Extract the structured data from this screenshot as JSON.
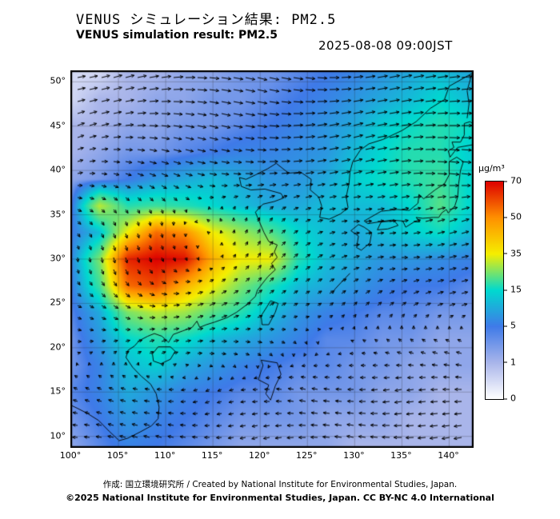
{
  "header": {
    "title_jp": "VENUS シミュレーション結果: PM2.5",
    "title_en": "VENUS simulation result: PM2.5",
    "timestamp": "2025-08-08 09:00JST"
  },
  "footer": {
    "credit_line1": "作成: 国立環境研究所 / Created by National Institute for Environmental Studies, Japan.",
    "credit_line2": "©2025 National Institute for Environmental Studies, Japan. CC BY-NC 4.0 International"
  },
  "axes": {
    "lon_labels": [
      "100°",
      "105°",
      "110°",
      "115°",
      "120°",
      "125°",
      "130°",
      "135°",
      "140°"
    ],
    "lat_labels": [
      "50°",
      "45°",
      "40°",
      "35°",
      "30°",
      "25°",
      "20°",
      "15°",
      "10°"
    ]
  },
  "colorbar": {
    "unit": "µg/m³",
    "ticks": [
      70,
      50,
      35,
      15,
      5,
      1,
      0
    ],
    "stops": [
      {
        "value": 0,
        "color": "#ffffff"
      },
      {
        "value": 1,
        "color": "#a9b5ea"
      },
      {
        "value": 5,
        "color": "#3f7ae8"
      },
      {
        "value": 15,
        "color": "#00d9cf"
      },
      {
        "value": 35,
        "color": "#f5ee00"
      },
      {
        "value": 50,
        "color": "#ff9000"
      },
      {
        "value": 70,
        "color": "#dd0000"
      }
    ]
  },
  "chart_data": {
    "type": "heatmap",
    "title": "VENUS simulation result: PM2.5",
    "unit": "µg/m³",
    "lon_range": [
      100,
      142.5
    ],
    "lat_range": [
      8.8,
      51.2
    ],
    "grid_lons": [
      100,
      103,
      106,
      109,
      112,
      115,
      118,
      121,
      124,
      127,
      130,
      133,
      136,
      139,
      142
    ],
    "grid_lats": [
      51,
      48,
      45,
      42,
      39,
      36,
      33,
      30,
      27,
      24,
      21,
      18,
      15,
      12,
      9
    ],
    "values": [
      [
        0.5,
        0.5,
        1,
        1,
        2,
        2,
        3,
        3,
        4,
        5,
        6,
        8,
        10,
        12,
        10
      ],
      [
        0.5,
        1,
        1,
        2,
        2,
        3,
        3,
        4,
        5,
        6,
        8,
        10,
        12,
        15,
        12
      ],
      [
        1,
        1,
        2,
        2,
        3,
        3,
        4,
        5,
        6,
        8,
        10,
        14,
        16,
        18,
        16
      ],
      [
        1,
        2,
        3,
        3,
        4,
        5,
        6,
        6,
        7,
        8,
        12,
        15,
        18,
        18,
        14
      ],
      [
        2,
        3,
        5,
        8,
        10,
        12,
        10,
        8,
        8,
        10,
        14,
        16,
        18,
        20,
        15
      ],
      [
        4,
        30,
        18,
        20,
        18,
        15,
        12,
        10,
        10,
        12,
        12,
        12,
        15,
        22,
        15
      ],
      [
        5,
        12,
        35,
        55,
        50,
        35,
        28,
        22,
        15,
        12,
        10,
        12,
        14,
        16,
        12
      ],
      [
        6,
        25,
        65,
        70,
        68,
        45,
        35,
        35,
        18,
        12,
        10,
        8,
        8,
        7,
        6
      ],
      [
        5,
        20,
        55,
        60,
        45,
        35,
        25,
        18,
        12,
        10,
        8,
        6,
        5,
        5,
        4
      ],
      [
        4,
        10,
        25,
        30,
        28,
        22,
        18,
        12,
        8,
        6,
        5,
        4,
        4,
        3,
        3
      ],
      [
        3,
        8,
        15,
        18,
        16,
        12,
        10,
        8,
        6,
        4,
        4,
        3,
        3,
        2,
        2
      ],
      [
        3,
        6,
        12,
        14,
        10,
        8,
        6,
        5,
        4,
        4,
        3,
        3,
        2,
        2,
        2
      ],
      [
        4,
        6,
        10,
        8,
        6,
        5,
        4,
        4,
        3,
        3,
        3,
        2,
        2,
        1,
        1
      ],
      [
        3,
        5,
        8,
        6,
        5,
        4,
        3,
        3,
        3,
        2,
        2,
        2,
        1,
        1,
        1
      ],
      [
        2,
        4,
        6,
        5,
        4,
        3,
        2,
        2,
        2,
        2,
        1,
        1,
        1,
        1,
        1
      ]
    ],
    "wind": {
      "lons": [
        100,
        105,
        110,
        115,
        120,
        125,
        130,
        135,
        140
      ],
      "lats": [
        50,
        45,
        40,
        35,
        30,
        25,
        20,
        15,
        10
      ],
      "u": [
        [
          6,
          7,
          8,
          8,
          8,
          8,
          8,
          9,
          9
        ],
        [
          5,
          6,
          7,
          7,
          8,
          8,
          8,
          8,
          9
        ],
        [
          3,
          4,
          5,
          6,
          6,
          7,
          7,
          8,
          8
        ],
        [
          2,
          1,
          0,
          -1,
          1,
          3,
          4,
          5,
          6
        ],
        [
          0,
          1,
          1,
          0,
          2,
          3,
          4,
          4,
          5
        ],
        [
          2,
          3,
          4,
          4,
          3,
          2,
          2,
          3,
          4
        ],
        [
          1,
          2,
          3,
          3,
          2,
          0,
          -1,
          -2,
          -3
        ],
        [
          -2,
          -3,
          -3,
          -2,
          -3,
          -4,
          -4,
          -5,
          -5
        ],
        [
          -3,
          -4,
          -4,
          -3,
          -4,
          -5,
          -5,
          -6,
          -6
        ]
      ],
      "v": [
        [
          1,
          2,
          1,
          -1,
          -2,
          -1,
          1,
          2,
          1
        ],
        [
          2,
          1,
          -1,
          -2,
          -1,
          1,
          2,
          1,
          0
        ],
        [
          1,
          -1,
          -2,
          -1,
          0,
          1,
          2,
          1,
          -1
        ],
        [
          -1,
          -2,
          -2,
          1,
          2,
          1,
          0,
          1,
          2
        ],
        [
          -2,
          -4,
          -2,
          0,
          3,
          2,
          1,
          0,
          1
        ],
        [
          -1,
          -2,
          0,
          2,
          2,
          1,
          2,
          2,
          1
        ],
        [
          0,
          1,
          1,
          0,
          -1,
          -1,
          0,
          1,
          1
        ],
        [
          1,
          1,
          0,
          -1,
          0,
          1,
          0,
          -1,
          0
        ],
        [
          0,
          1,
          1,
          0,
          -1,
          0,
          1,
          0,
          -1
        ]
      ]
    }
  },
  "basemap": {
    "coastlines": [
      [
        [
          142.5,
          51
        ],
        [
          140,
          49.5
        ],
        [
          139.5,
          48
        ],
        [
          138,
          47
        ],
        [
          136.5,
          45.5
        ],
        [
          135,
          44.5
        ],
        [
          133,
          43.5
        ],
        [
          131.5,
          43
        ],
        [
          130.6,
          42.3
        ],
        [
          129.8,
          41
        ],
        [
          129.5,
          39.8
        ],
        [
          129.4,
          38.5
        ],
        [
          129.1,
          37
        ],
        [
          129.3,
          35.8
        ],
        [
          128.5,
          35.1
        ],
        [
          127.3,
          34.5
        ],
        [
          126.3,
          34.7
        ],
        [
          126.5,
          36
        ],
        [
          126.2,
          37
        ],
        [
          125.3,
          37.8
        ],
        [
          125.4,
          39
        ],
        [
          124.3,
          39.8
        ],
        [
          123,
          39.7
        ],
        [
          121.7,
          40.8
        ],
        [
          120.8,
          40.2
        ],
        [
          119.5,
          39.5
        ],
        [
          118.5,
          39
        ],
        [
          117.8,
          39.2
        ],
        [
          118,
          38.2
        ],
        [
          119,
          37.8
        ],
        [
          120.5,
          37.9
        ],
        [
          122.2,
          37.4
        ],
        [
          122.5,
          36.9
        ],
        [
          121.5,
          36.5
        ],
        [
          120.3,
          36.2
        ],
        [
          119.5,
          35.3
        ],
        [
          119.8,
          34.5
        ],
        [
          120.4,
          33
        ],
        [
          120.9,
          32
        ],
        [
          121.8,
          31.6
        ],
        [
          121.5,
          30.8
        ],
        [
          121.8,
          30.2
        ],
        [
          121.2,
          29.5
        ],
        [
          121.6,
          28.8
        ],
        [
          120.8,
          28
        ],
        [
          120.2,
          27.2
        ],
        [
          119.7,
          26.5
        ],
        [
          119.5,
          25.8
        ],
        [
          118.5,
          24.8
        ],
        [
          117.5,
          24
        ],
        [
          116.5,
          23.4
        ],
        [
          115.2,
          22.9
        ],
        [
          114.3,
          22.6
        ],
        [
          113.6,
          22.3
        ],
        [
          113.3,
          23
        ],
        [
          112.8,
          22.3
        ],
        [
          111.8,
          21.9
        ],
        [
          110.8,
          21.5
        ],
        [
          110.3,
          20.6
        ],
        [
          109.6,
          21.3
        ],
        [
          108.8,
          21.6
        ],
        [
          108.1,
          21.3
        ],
        [
          107.2,
          20.8
        ],
        [
          106.7,
          20.2
        ],
        [
          106,
          19.7
        ],
        [
          105.8,
          18.9
        ],
        [
          106.5,
          17.8
        ],
        [
          107.4,
          16.8
        ],
        [
          108.4,
          15.9
        ],
        [
          109,
          14.8
        ],
        [
          109.3,
          13.3
        ],
        [
          109.2,
          12
        ],
        [
          108.5,
          11.2
        ],
        [
          107.3,
          10.5
        ],
        [
          106,
          9.8
        ],
        [
          105,
          9.5
        ]
      ],
      [
        [
          100,
          13.5
        ],
        [
          100.6,
          13.2
        ],
        [
          101.7,
          12.6
        ],
        [
          102.9,
          11.8
        ],
        [
          104,
          10.6
        ],
        [
          105,
          9.6
        ]
      ],
      [
        [
          130.4,
          33.9
        ],
        [
          131,
          33.6
        ],
        [
          131.8,
          33
        ],
        [
          131.6,
          31.8
        ],
        [
          130.7,
          31
        ],
        [
          130.2,
          31.3
        ],
        [
          130.4,
          32.6
        ],
        [
          129.6,
          33.2
        ],
        [
          130.4,
          33.9
        ]
      ],
      [
        [
          132.8,
          34.2
        ],
        [
          134.2,
          34.3
        ],
        [
          134.6,
          33.8
        ],
        [
          133.5,
          33.4
        ],
        [
          132.4,
          33.3
        ],
        [
          132.8,
          34.2
        ]
      ],
      [
        [
          131,
          34.3
        ],
        [
          132.8,
          35.4
        ],
        [
          134.5,
          35.6
        ],
        [
          135.8,
          35.5
        ],
        [
          136.7,
          36.3
        ],
        [
          136.8,
          37.3
        ],
        [
          137.3,
          36.8
        ],
        [
          138.5,
          37.8
        ],
        [
          139.5,
          38.5
        ],
        [
          140,
          39.5
        ],
        [
          140,
          41
        ],
        [
          140.8,
          41.5
        ],
        [
          141.5,
          41
        ],
        [
          141.2,
          40
        ],
        [
          141,
          38.5
        ],
        [
          140.9,
          37
        ],
        [
          140.6,
          36
        ],
        [
          139.9,
          35.2
        ],
        [
          139.7,
          35.6
        ],
        [
          139.2,
          35.2
        ],
        [
          138.9,
          34.7
        ],
        [
          138.3,
          34.7
        ],
        [
          137.2,
          34.6
        ],
        [
          136.5,
          34.7
        ],
        [
          136.9,
          34.2
        ],
        [
          136.3,
          34.2
        ],
        [
          135.4,
          33.6
        ],
        [
          135.1,
          34.3
        ],
        [
          133.9,
          34.4
        ],
        [
          132.6,
          34.2
        ],
        [
          131.4,
          34
        ],
        [
          131,
          34.3
        ]
      ],
      [
        [
          140.1,
          41.5
        ],
        [
          139.9,
          42.2
        ],
        [
          140.5,
          42.6
        ],
        [
          140.3,
          43.2
        ],
        [
          141.2,
          43.2
        ],
        [
          141.6,
          44
        ],
        [
          141.6,
          45.3
        ],
        [
          142.2,
          45.5
        ],
        [
          142.5,
          45.3
        ],
        [
          142.5,
          42.9
        ],
        [
          140.9,
          42.6
        ],
        [
          140.1,
          41.5
        ]
      ],
      [
        [
          141.9,
          45.9
        ],
        [
          142.1,
          47.5
        ],
        [
          141.9,
          49
        ],
        [
          142.3,
          50.5
        ],
        [
          142.5,
          51
        ]
      ],
      [
        [
          121.1,
          25.3
        ],
        [
          121.9,
          25
        ],
        [
          121.6,
          24
        ],
        [
          120.9,
          22.6
        ],
        [
          120.2,
          22.6
        ],
        [
          120.1,
          23.6
        ],
        [
          120.7,
          24.6
        ],
        [
          121.1,
          25.3
        ]
      ],
      [
        [
          109.2,
          20.1
        ],
        [
          110.5,
          20.1
        ],
        [
          111,
          19.6
        ],
        [
          110.5,
          18.7
        ],
        [
          109.5,
          18.2
        ],
        [
          108.7,
          18.5
        ],
        [
          108.6,
          19.3
        ],
        [
          109.2,
          20.1
        ]
      ],
      [
        [
          120.1,
          18.6
        ],
        [
          121.8,
          18.3
        ],
        [
          122.2,
          17
        ],
        [
          121.6,
          15.7
        ],
        [
          121.1,
          14.1
        ],
        [
          120.6,
          14.8
        ],
        [
          120.9,
          15.8
        ],
        [
          119.8,
          16.4
        ],
        [
          120.3,
          18
        ],
        [
          120.1,
          18.6
        ]
      ],
      [
        [
          129.5,
          28.4
        ],
        [
          128.6,
          27.4
        ],
        [
          127.9,
          26.6
        ],
        [
          127.7,
          26.1
        ]
      ]
    ]
  }
}
